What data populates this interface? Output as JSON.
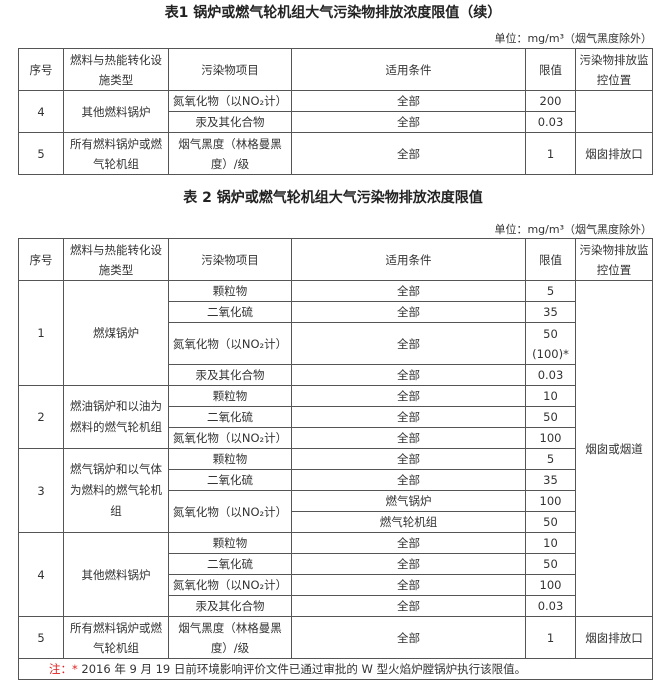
{
  "table1": {
    "title": "表1  锅炉或燃气轮机组大气污染物排放浓度限值（续）",
    "unit": "单位：mg/m³（烟气黑度除外）",
    "headers": [
      "序号",
      "燃料与热能转化设施类型",
      "污染物项目",
      "适用条件",
      "限值",
      "污染物排放监控位置"
    ],
    "rows": [
      {
        "seq": "4",
        "type": "其他燃料锅炉",
        "items": [
          {
            "pollutant": "氮氧化物（以NO₂计）",
            "condition": "全部",
            "limit": "200"
          },
          {
            "pollutant": "汞及其化合物",
            "condition": "全部",
            "limit": "0.03"
          }
        ]
      },
      {
        "seq": "5",
        "type": "所有燃料锅炉或燃气轮机组",
        "pollutant": "烟气黑度（林格曼黑度）/级",
        "condition": "全部",
        "limit": "1",
        "location": "烟囱排放口"
      }
    ]
  },
  "table2": {
    "title": "表 2  锅炉或燃气轮机组大气污染物排放浓度限值",
    "unit": "单位：mg/m³（烟气黑度除外）",
    "headers": [
      "序号",
      "燃料与热能转化设施类型",
      "污染物项目",
      "适用条件",
      "限值",
      "污染物排放监控位置"
    ],
    "location_1_4": "烟囱或烟道",
    "g1": {
      "seq": "1",
      "type": "燃煤锅炉",
      "items": [
        {
          "pollutant": "颗粒物",
          "condition": "全部",
          "limit": "5"
        },
        {
          "pollutant": "二氧化硫",
          "condition": "全部",
          "limit": "35"
        },
        {
          "pollutant": "氮氧化物（以NO₂计）",
          "condition": "全部",
          "limit": "50",
          "limit2": "(100)*"
        },
        {
          "pollutant": "汞及其化合物",
          "condition": "全部",
          "limit": "0.03"
        }
      ]
    },
    "g2": {
      "seq": "2",
      "type": "燃油锅炉和以油为燃料的燃气轮机组",
      "items": [
        {
          "pollutant": "颗粒物",
          "condition": "全部",
          "limit": "10"
        },
        {
          "pollutant": "二氧化硫",
          "condition": "全部",
          "limit": "50"
        },
        {
          "pollutant": "氮氧化物（以NO₂计）",
          "condition": "全部",
          "limit": "100"
        }
      ]
    },
    "g3": {
      "seq": "3",
      "type": "燃气锅炉和以气体为燃料的燃气轮机组",
      "items": [
        {
          "pollutant": "颗粒物",
          "condition": "全部",
          "limit": "5"
        },
        {
          "pollutant": "二氧化硫",
          "condition": "全部",
          "limit": "35"
        },
        {
          "pollutant": "氮氧化物（以NO₂计）",
          "condition": "燃气锅炉",
          "limit": "100"
        },
        {
          "condition": "燃气轮机组",
          "limit": "50"
        }
      ]
    },
    "g4": {
      "seq": "4",
      "type": "其他燃料锅炉",
      "items": [
        {
          "pollutant": "颗粒物",
          "condition": "全部",
          "limit": "10"
        },
        {
          "pollutant": "二氧化硫",
          "condition": "全部",
          "limit": "50"
        },
        {
          "pollutant": "氮氧化物（以NO₂计）",
          "condition": "全部",
          "limit": "100"
        },
        {
          "pollutant": "汞及其化合物",
          "condition": "全部",
          "limit": "0.03"
        }
      ]
    },
    "g5": {
      "seq": "5",
      "type": "所有燃料锅炉或燃气轮机组",
      "pollutant": "烟气黑度（林格曼黑度）/级",
      "condition": "全部",
      "limit": "1",
      "location": "烟囱排放口"
    },
    "note_label": "注：*",
    "note_text": " 2016 年 9 月 19 日前环境影响评价文件已通过审批的 W 型火焰炉膛锅炉执行该限值。"
  },
  "colors": {
    "note_label": "#e02020",
    "border": "#555555"
  }
}
